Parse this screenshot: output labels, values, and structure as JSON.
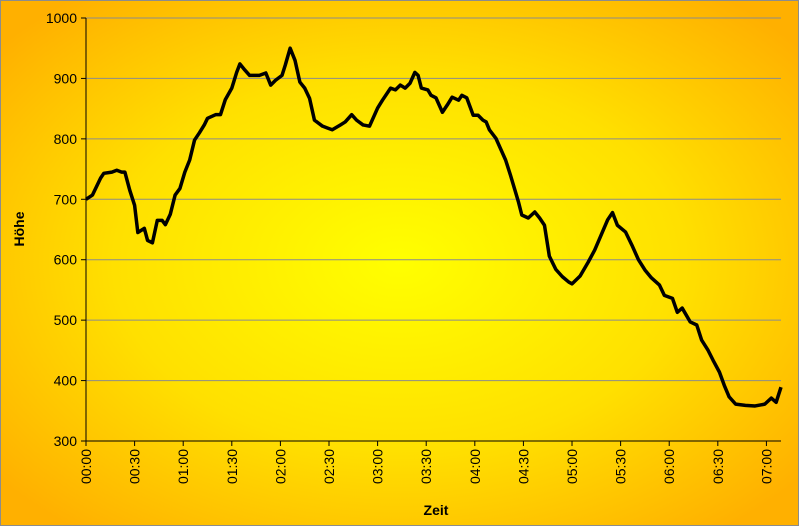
{
  "chart_data": {
    "type": "line",
    "x_label": "Zeit",
    "y_label": "Höhe",
    "xlim": [
      0,
      429
    ],
    "ylim": [
      300,
      1000
    ],
    "yticks": [
      300,
      400,
      500,
      600,
      700,
      800,
      900,
      1000
    ],
    "xticks": [
      {
        "value": 0,
        "label": "00:00"
      },
      {
        "value": 30,
        "label": "00:30"
      },
      {
        "value": 60,
        "label": "01:00"
      },
      {
        "value": 90,
        "label": "01:30"
      },
      {
        "value": 120,
        "label": "02:00"
      },
      {
        "value": 150,
        "label": "02:30"
      },
      {
        "value": 180,
        "label": "03:00"
      },
      {
        "value": 210,
        "label": "03:30"
      },
      {
        "value": 240,
        "label": "04:00"
      },
      {
        "value": 270,
        "label": "04:30"
      },
      {
        "value": 300,
        "label": "05:00"
      },
      {
        "value": 330,
        "label": "05:30"
      },
      {
        "value": 360,
        "label": "06:00"
      },
      {
        "value": 390,
        "label": "06:30"
      },
      {
        "value": 420,
        "label": "07:00"
      }
    ],
    "grid": true,
    "series": [
      {
        "name": "Höhe",
        "color": "#000000",
        "x": [
          0,
          4,
          9,
          11,
          16,
          19,
          22,
          24,
          27,
          30,
          32,
          36,
          38,
          41,
          44,
          47,
          49,
          52,
          55,
          58,
          61,
          64,
          67,
          70,
          73,
          75,
          80,
          83,
          86,
          90,
          93,
          95,
          98,
          101,
          105,
          107,
          111,
          114,
          117,
          121,
          123,
          126,
          129,
          132,
          135,
          138,
          141,
          146,
          149,
          152,
          157,
          160,
          164,
          167,
          171,
          175,
          180,
          183,
          188,
          191,
          194,
          197,
          200,
          203,
          205,
          207,
          211,
          213,
          216,
          220,
          223,
          226,
          230,
          232,
          235,
          239,
          242,
          245,
          247,
          249,
          253,
          259,
          262,
          267,
          269,
          273,
          277,
          280,
          283,
          286,
          290,
          294,
          298,
          300,
          305,
          310,
          314,
          318,
          322,
          325,
          328,
          333,
          337,
          341,
          345,
          349,
          354,
          357,
          362,
          365,
          368,
          373,
          377,
          380,
          384,
          387,
          391,
          394,
          397,
          401,
          407,
          413,
          419,
          423,
          426,
          429
        ],
        "values": [
          700,
          707,
          735,
          743,
          745,
          748,
          745,
          745,
          715,
          690,
          645,
          652,
          632,
          628,
          665,
          665,
          658,
          675,
          707,
          718,
          745,
          765,
          798,
          810,
          823,
          834,
          840,
          840,
          865,
          884,
          910,
          924,
          914,
          905,
          905,
          905,
          909,
          889,
          897,
          905,
          922,
          950,
          930,
          894,
          884,
          867,
          831,
          821,
          818,
          815,
          823,
          828,
          840,
          831,
          823,
          821,
          851,
          864,
          884,
          881,
          889,
          884,
          892,
          910,
          905,
          884,
          881,
          872,
          868,
          844,
          856,
          869,
          864,
          872,
          868,
          839,
          839,
          831,
          828,
          815,
          801,
          765,
          740,
          695,
          674,
          669,
          679,
          669,
          657,
          606,
          584,
          572,
          563,
          560,
          573,
          596,
          616,
          641,
          666,
          678,
          657,
          646,
          624,
          600,
          583,
          570,
          558,
          541,
          536,
          513,
          520,
          497,
          492,
          467,
          450,
          434,
          414,
          392,
          373,
          361,
          359,
          358,
          361,
          371,
          364,
          389
        ]
      }
    ]
  }
}
